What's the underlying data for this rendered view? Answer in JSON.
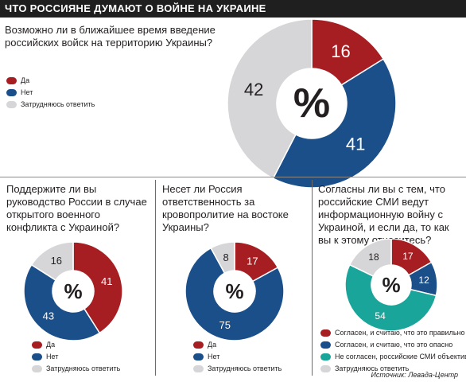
{
  "header": {
    "title": "ЧТО РОССИЯНЕ ДУМАЮТ О ВОЙНЕ НА УКРАИНЕ"
  },
  "source": "Источник: Левада-Центр",
  "center_label": "%",
  "colors": {
    "red": "#a71e22",
    "blue": "#1b4f8a",
    "grey": "#d6d6d8",
    "teal": "#1aa59a"
  },
  "chart_data": [
    {
      "type": "pie",
      "title": "Возможно ли в ближайшее время введение российских войск на территорию Украины?",
      "categories": [
        "Да",
        "Нет",
        "Затрудняюсь ответить"
      ],
      "values": [
        16,
        41,
        42
      ],
      "colors": [
        "#a71e22",
        "#1b4f8a",
        "#d6d6d8"
      ],
      "legend": "left"
    },
    {
      "type": "pie",
      "title": "Поддержите ли вы руководство России в случае открытого военного конфликта с Украиной?",
      "categories": [
        "Да",
        "Нет",
        "Затрудняюсь ответить"
      ],
      "values": [
        41,
        43,
        16
      ],
      "colors": [
        "#a71e22",
        "#1b4f8a",
        "#d6d6d8"
      ],
      "legend": "bottom"
    },
    {
      "type": "pie",
      "title": "Несет ли Россия ответственность за кровопролитие на востоке Украины?",
      "categories": [
        "Да",
        "Нет",
        "Затрудняюсь ответить"
      ],
      "values": [
        17,
        75,
        8
      ],
      "colors": [
        "#a71e22",
        "#1b4f8a",
        "#d6d6d8"
      ],
      "legend": "bottom"
    },
    {
      "type": "pie",
      "title": "Согласны ли вы с тем, что российские СМИ ведут информационную войну с Украиной, и если да, то как вы к этому относитесь?",
      "categories": [
        "Согласен, и считаю, что это правильно",
        "Согласен, и считаю, что это опасно",
        "Не согласен, российские СМИ объективны",
        "Затрудняюсь ответить"
      ],
      "values": [
        17,
        12,
        54,
        18
      ],
      "colors": [
        "#a71e22",
        "#1b4f8a",
        "#1aa59a",
        "#d6d6d8"
      ],
      "legend": "bottom"
    }
  ]
}
